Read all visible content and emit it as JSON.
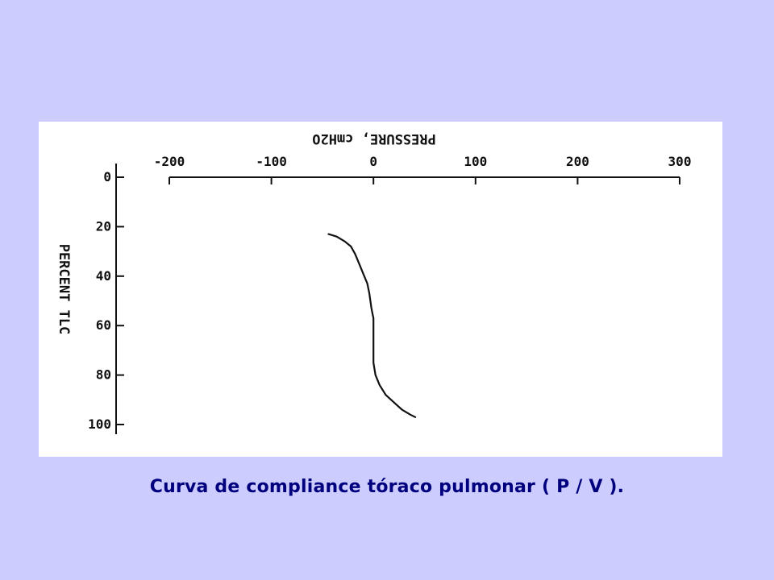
{
  "slide": {
    "caption": "Curva de compliance tóraco pulmonar ( P / V )."
  },
  "chart_data": {
    "type": "line",
    "orientation": "mirrored",
    "xlabel": "PRESSURE, cmH2O",
    "ylabel": "PERCENT TLC",
    "x_ticks": [
      -200,
      -100,
      0,
      100,
      200,
      300
    ],
    "x_tick_labels": [
      "-200",
      "-100",
      "0",
      "100",
      "200",
      "300"
    ],
    "y_ticks": [
      0,
      20,
      40,
      60,
      80,
      100
    ],
    "y_tick_labels": [
      "0",
      "20",
      "40",
      "60",
      "80",
      "100"
    ],
    "xlim": [
      -200,
      300
    ],
    "ylim": [
      0,
      100
    ],
    "grid": false,
    "series": [
      {
        "x": [
          -44,
          -36,
          -28,
          -22,
          -18,
          -14,
          -10,
          -6,
          -4,
          -3,
          -2,
          -1,
          0,
          0,
          0,
          0,
          0,
          2,
          6,
          12,
          20,
          28,
          36,
          41
        ],
        "y": [
          23,
          24,
          26,
          28,
          31,
          35,
          39,
          43,
          47,
          50,
          53,
          55,
          57,
          60,
          65,
          70,
          75,
          80,
          84,
          88,
          91,
          94,
          96,
          97
        ]
      }
    ],
    "colors": {
      "line": "#111111",
      "axis": "#111111"
    }
  }
}
